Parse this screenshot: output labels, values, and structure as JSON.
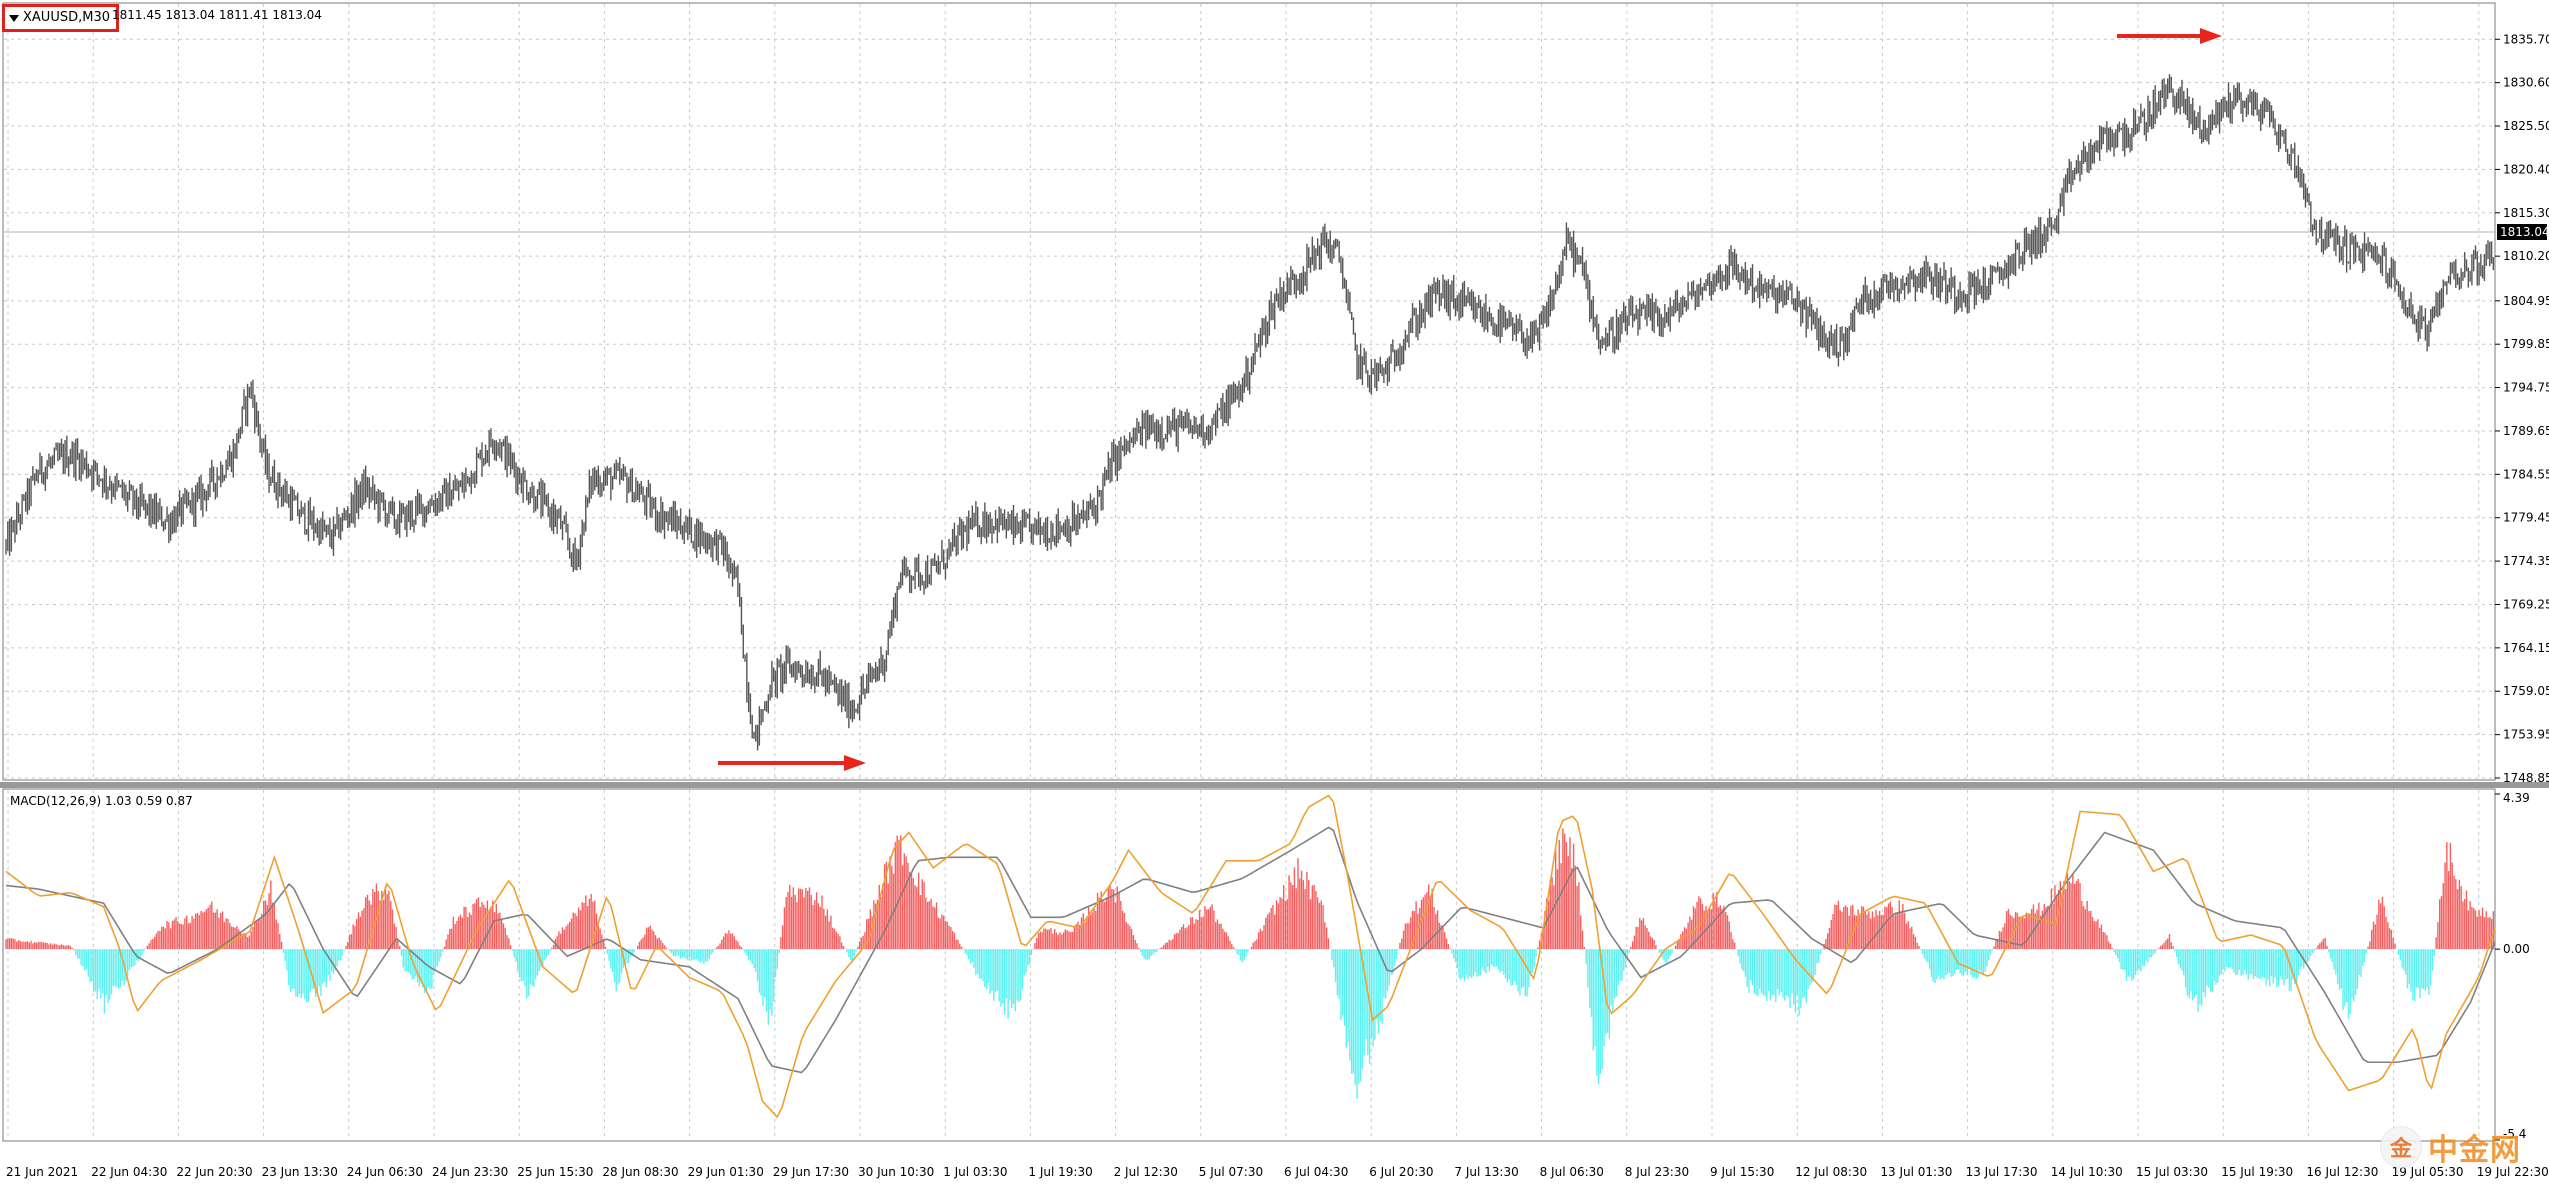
{
  "chart": {
    "symbol": "XAUUSD,M30",
    "ohlc": "1811.45 1813.04 1811.41 1813.04",
    "current_price": "1813.04",
    "price_axis": [
      "1835.70",
      "1830.60",
      "1825.50",
      "1820.40",
      "1815.30",
      "1810.20",
      "1804.95",
      "1799.85",
      "1794.75",
      "1789.65",
      "1784.55",
      "1779.45",
      "1774.35",
      "1769.25",
      "1764.15",
      "1759.05",
      "1753.95",
      "1748.85"
    ],
    "time_axis": [
      "21 Jun 2021",
      "22 Jun 04:30",
      "22 Jun 20:30",
      "23 Jun 13:30",
      "24 Jun 06:30",
      "24 Jun 23:30",
      "25 Jun 15:30",
      "28 Jun 08:30",
      "29 Jun 01:30",
      "29 Jun 17:30",
      "30 Jun 10:30",
      "1 Jul 03:30",
      "1 Jul 19:30",
      "2 Jul 12:30",
      "5 Jul 07:30",
      "6 Jul 04:30",
      "6 Jul 20:30",
      "7 Jul 13:30",
      "8 Jul 06:30",
      "8 Jul 23:30",
      "9 Jul 15:30",
      "12 Jul 08:30",
      "13 Jul 01:30",
      "13 Jul 17:30",
      "14 Jul 10:30",
      "15 Jul 03:30",
      "15 Jul 19:30",
      "16 Jul 12:30",
      "19 Jul 05:30",
      "19 Jul 22:30"
    ],
    "price_range": [
      1748.85,
      1838.2
    ],
    "price_path": [
      [
        0,
        1776
      ],
      [
        20,
        1785
      ],
      [
        40,
        1787
      ],
      [
        60,
        1784
      ],
      [
        80,
        1781
      ],
      [
        100,
        1779
      ],
      [
        120,
        1782
      ],
      [
        140,
        1787
      ],
      [
        150,
        1795
      ],
      [
        160,
        1785
      ],
      [
        180,
        1780
      ],
      [
        200,
        1777
      ],
      [
        220,
        1783
      ],
      [
        240,
        1779
      ],
      [
        260,
        1781
      ],
      [
        280,
        1783
      ],
      [
        300,
        1789
      ],
      [
        320,
        1783
      ],
      [
        340,
        1779
      ],
      [
        350,
        1774
      ],
      [
        360,
        1784
      ],
      [
        380,
        1784
      ],
      [
        400,
        1780
      ],
      [
        420,
        1778
      ],
      [
        440,
        1776
      ],
      [
        450,
        1771
      ],
      [
        455,
        1761
      ],
      [
        460,
        1753
      ],
      [
        470,
        1760
      ],
      [
        480,
        1762
      ],
      [
        500,
        1761
      ],
      [
        520,
        1757
      ],
      [
        530,
        1760
      ],
      [
        540,
        1763
      ],
      [
        550,
        1773
      ],
      [
        570,
        1773
      ],
      [
        590,
        1778
      ],
      [
        600,
        1779
      ],
      [
        610,
        1779
      ],
      [
        620,
        1778
      ],
      [
        640,
        1778
      ],
      [
        660,
        1779
      ],
      [
        670,
        1781
      ],
      [
        680,
        1786
      ],
      [
        690,
        1788
      ],
      [
        700,
        1790
      ],
      [
        720,
        1790
      ],
      [
        740,
        1790
      ],
      [
        760,
        1795
      ],
      [
        780,
        1805
      ],
      [
        800,
        1809
      ],
      [
        810,
        1812
      ],
      [
        820,
        1810
      ],
      [
        830,
        1798
      ],
      [
        840,
        1796
      ],
      [
        850,
        1797
      ],
      [
        860,
        1801
      ],
      [
        880,
        1806
      ],
      [
        900,
        1804
      ],
      [
        920,
        1802
      ],
      [
        940,
        1800
      ],
      [
        950,
        1805
      ],
      [
        960,
        1812
      ],
      [
        970,
        1808
      ],
      [
        980,
        1800
      ],
      [
        1000,
        1803
      ],
      [
        1020,
        1803
      ],
      [
        1040,
        1806
      ],
      [
        1060,
        1809
      ],
      [
        1080,
        1806
      ],
      [
        1100,
        1805
      ],
      [
        1120,
        1800
      ],
      [
        1130,
        1800
      ],
      [
        1140,
        1805
      ],
      [
        1160,
        1807
      ],
      [
        1180,
        1808
      ],
      [
        1200,
        1806
      ],
      [
        1220,
        1807
      ],
      [
        1240,
        1811
      ],
      [
        1260,
        1814
      ],
      [
        1270,
        1820
      ],
      [
        1290,
        1824
      ],
      [
        1310,
        1825
      ],
      [
        1330,
        1830
      ],
      [
        1350,
        1825
      ],
      [
        1370,
        1829
      ],
      [
        1390,
        1827
      ],
      [
        1410,
        1820
      ],
      [
        1420,
        1813
      ],
      [
        1440,
        1811
      ],
      [
        1460,
        1810
      ],
      [
        1480,
        1803
      ],
      [
        1490,
        1801
      ],
      [
        1500,
        1808
      ],
      [
        1520,
        1809
      ],
      [
        1530,
        1811
      ]
    ],
    "arrows_color": "#e8251a"
  },
  "macd": {
    "title": "MACD(12,26,9) 1.03 0.59 0.87",
    "axis_labels": [
      "4.39",
      "0.00",
      "-5.4"
    ],
    "range": [
      -5.4,
      4.39
    ],
    "hist_color_pos": "#f46060",
    "hist_color_neg": "#5ff0f0",
    "signal_color": "#808080",
    "macd_color": "#f0a030",
    "macd_path": [
      [
        0,
        2.2
      ],
      [
        20,
        1.5
      ],
      [
        40,
        1.6
      ],
      [
        60,
        1.2
      ],
      [
        70,
        0.0
      ],
      [
        80,
        -1.8
      ],
      [
        95,
        -0.9
      ],
      [
        120,
        -0.3
      ],
      [
        150,
        0.5
      ],
      [
        165,
        2.6
      ],
      [
        180,
        0.5
      ],
      [
        195,
        -1.8
      ],
      [
        215,
        -1.1
      ],
      [
        235,
        2.0
      ],
      [
        250,
        -0.4
      ],
      [
        265,
        -1.8
      ],
      [
        290,
        0.6
      ],
      [
        310,
        2.0
      ],
      [
        330,
        -0.5
      ],
      [
        350,
        -1.3
      ],
      [
        370,
        1.6
      ],
      [
        385,
        -1.3
      ],
      [
        400,
        0.1
      ],
      [
        420,
        -0.8
      ],
      [
        440,
        -1.2
      ],
      [
        455,
        -2.6
      ],
      [
        465,
        -4.3
      ],
      [
        475,
        -4.8
      ],
      [
        490,
        -2.4
      ],
      [
        510,
        -0.9
      ],
      [
        530,
        0.2
      ],
      [
        545,
        2.8
      ],
      [
        555,
        3.3
      ],
      [
        570,
        2.3
      ],
      [
        590,
        3.0
      ],
      [
        610,
        2.4
      ],
      [
        625,
        0.0
      ],
      [
        640,
        0.8
      ],
      [
        660,
        0.6
      ],
      [
        680,
        1.9
      ],
      [
        690,
        2.8
      ],
      [
        710,
        1.6
      ],
      [
        730,
        1.0
      ],
      [
        750,
        2.5
      ],
      [
        770,
        2.5
      ],
      [
        790,
        3.0
      ],
      [
        800,
        4.0
      ],
      [
        815,
        4.4
      ],
      [
        825,
        2.0
      ],
      [
        840,
        -2.0
      ],
      [
        850,
        -1.6
      ],
      [
        865,
        0.2
      ],
      [
        880,
        2.0
      ],
      [
        900,
        1.1
      ],
      [
        920,
        0.6
      ],
      [
        940,
        -0.9
      ],
      [
        955,
        3.6
      ],
      [
        965,
        3.8
      ],
      [
        975,
        1.7
      ],
      [
        985,
        -1.9
      ],
      [
        1000,
        -1.3
      ],
      [
        1020,
        0.0
      ],
      [
        1040,
        0.6
      ],
      [
        1060,
        2.2
      ],
      [
        1080,
        1.0
      ],
      [
        1100,
        -0.3
      ],
      [
        1120,
        -1.3
      ],
      [
        1140,
        1.0
      ],
      [
        1160,
        1.5
      ],
      [
        1180,
        1.3
      ],
      [
        1200,
        -0.4
      ],
      [
        1220,
        -0.8
      ],
      [
        1240,
        1.0
      ],
      [
        1260,
        0.7
      ],
      [
        1275,
        3.9
      ],
      [
        1300,
        3.8
      ],
      [
        1320,
        2.2
      ],
      [
        1340,
        2.6
      ],
      [
        1360,
        0.2
      ],
      [
        1380,
        0.4
      ],
      [
        1400,
        0.1
      ],
      [
        1420,
        -2.6
      ],
      [
        1440,
        -4.0
      ],
      [
        1460,
        -3.7
      ],
      [
        1480,
        -2.2
      ],
      [
        1490,
        -4.1
      ],
      [
        1500,
        -2.4
      ],
      [
        1520,
        -0.8
      ],
      [
        1530,
        0.6
      ]
    ],
    "signal_path": [
      [
        0,
        1.8
      ],
      [
        20,
        1.7
      ],
      [
        40,
        1.5
      ],
      [
        60,
        1.3
      ],
      [
        80,
        -0.2
      ],
      [
        100,
        -0.7
      ],
      [
        130,
        0.0
      ],
      [
        160,
        1.0
      ],
      [
        175,
        1.9
      ],
      [
        195,
        0.0
      ],
      [
        215,
        -1.4
      ],
      [
        240,
        0.3
      ],
      [
        260,
        -0.5
      ],
      [
        280,
        -1.0
      ],
      [
        300,
        0.8
      ],
      [
        320,
        1.0
      ],
      [
        345,
        -0.2
      ],
      [
        370,
        0.3
      ],
      [
        390,
        -0.3
      ],
      [
        420,
        -0.5
      ],
      [
        450,
        -1.4
      ],
      [
        470,
        -3.3
      ],
      [
        490,
        -3.5
      ],
      [
        510,
        -2.0
      ],
      [
        540,
        0.5
      ],
      [
        560,
        2.5
      ],
      [
        580,
        2.6
      ],
      [
        610,
        2.6
      ],
      [
        630,
        0.9
      ],
      [
        650,
        0.9
      ],
      [
        680,
        1.5
      ],
      [
        700,
        2.0
      ],
      [
        730,
        1.6
      ],
      [
        760,
        2.0
      ],
      [
        790,
        2.8
      ],
      [
        815,
        3.5
      ],
      [
        830,
        1.4
      ],
      [
        850,
        -0.7
      ],
      [
        870,
        0.0
      ],
      [
        895,
        1.2
      ],
      [
        920,
        0.9
      ],
      [
        945,
        0.6
      ],
      [
        965,
        2.4
      ],
      [
        985,
        0.5
      ],
      [
        1005,
        -0.8
      ],
      [
        1030,
        -0.2
      ],
      [
        1060,
        1.3
      ],
      [
        1085,
        1.4
      ],
      [
        1110,
        0.3
      ],
      [
        1135,
        -0.4
      ],
      [
        1160,
        1.0
      ],
      [
        1190,
        1.3
      ],
      [
        1210,
        0.4
      ],
      [
        1240,
        0.1
      ],
      [
        1265,
        1.8
      ],
      [
        1290,
        3.3
      ],
      [
        1320,
        2.8
      ],
      [
        1345,
        1.3
      ],
      [
        1370,
        0.8
      ],
      [
        1400,
        0.6
      ],
      [
        1425,
        -1.2
      ],
      [
        1450,
        -3.2
      ],
      [
        1470,
        -3.2
      ],
      [
        1495,
        -3.0
      ],
      [
        1515,
        -1.5
      ],
      [
        1530,
        0.2
      ]
    ],
    "histogram": [
      [
        0,
        0.3
      ],
      [
        20,
        0.2
      ],
      [
        40,
        0.1
      ],
      [
        60,
        -1.7
      ],
      [
        75,
        -0.8
      ],
      [
        95,
        0.7
      ],
      [
        110,
        0.9
      ],
      [
        125,
        1.3
      ],
      [
        150,
        0.4
      ],
      [
        163,
        1.9
      ],
      [
        175,
        -1.3
      ],
      [
        190,
        -1.5
      ],
      [
        205,
        -0.4
      ],
      [
        220,
        1.5
      ],
      [
        235,
        1.9
      ],
      [
        245,
        -0.7
      ],
      [
        260,
        -1.3
      ],
      [
        275,
        0.9
      ],
      [
        295,
        1.5
      ],
      [
        305,
        1.0
      ],
      [
        320,
        -1.5
      ],
      [
        340,
        0.5
      ],
      [
        360,
        1.6
      ],
      [
        375,
        -1.1
      ],
      [
        395,
        0.7
      ],
      [
        410,
        -0.2
      ],
      [
        430,
        -0.4
      ],
      [
        445,
        0.6
      ],
      [
        458,
        -0.4
      ],
      [
        470,
        -2.2
      ],
      [
        480,
        1.8
      ],
      [
        500,
        1.6
      ],
      [
        520,
        -0.4
      ],
      [
        540,
        2.2
      ],
      [
        550,
        3.2
      ],
      [
        565,
        1.7
      ],
      [
        580,
        0.7
      ],
      [
        600,
        -1.0
      ],
      [
        620,
        -2.0
      ],
      [
        635,
        0.6
      ],
      [
        655,
        0.5
      ],
      [
        680,
        2.0
      ],
      [
        700,
        -0.4
      ],
      [
        720,
        0.5
      ],
      [
        740,
        1.3
      ],
      [
        760,
        -0.4
      ],
      [
        780,
        1.3
      ],
      [
        795,
        2.4
      ],
      [
        810,
        1.2
      ],
      [
        828,
        -4.2
      ],
      [
        845,
        -2.2
      ],
      [
        860,
        0.8
      ],
      [
        875,
        1.8
      ],
      [
        895,
        -1.0
      ],
      [
        915,
        -0.5
      ],
      [
        935,
        -1.5
      ],
      [
        955,
        3.2
      ],
      [
        965,
        2.8
      ],
      [
        978,
        -4.0
      ],
      [
        990,
        -1.4
      ],
      [
        1005,
        1.1
      ],
      [
        1020,
        -0.5
      ],
      [
        1040,
        1.4
      ],
      [
        1055,
        1.5
      ],
      [
        1070,
        -1.1
      ],
      [
        1085,
        -1.4
      ],
      [
        1105,
        -1.8
      ],
      [
        1125,
        1.3
      ],
      [
        1145,
        1.1
      ],
      [
        1165,
        1.3
      ],
      [
        1185,
        -0.9
      ],
      [
        1200,
        -0.7
      ],
      [
        1215,
        -0.8
      ],
      [
        1230,
        1.1
      ],
      [
        1250,
        1.2
      ],
      [
        1270,
        2.2
      ],
      [
        1290,
        0.5
      ],
      [
        1305,
        -1.0
      ],
      [
        1330,
        0.4
      ],
      [
        1345,
        -1.8
      ],
      [
        1365,
        -0.6
      ],
      [
        1385,
        -0.9
      ],
      [
        1405,
        -1.1
      ],
      [
        1425,
        0.4
      ],
      [
        1440,
        -2.2
      ],
      [
        1460,
        1.6
      ],
      [
        1478,
        -1.4
      ],
      [
        1490,
        -1.4
      ],
      [
        1500,
        3.1
      ],
      [
        1515,
        1.2
      ],
      [
        1530,
        1.1
      ]
    ]
  },
  "watermark": {
    "text": "中金网",
    "logo": "金"
  }
}
